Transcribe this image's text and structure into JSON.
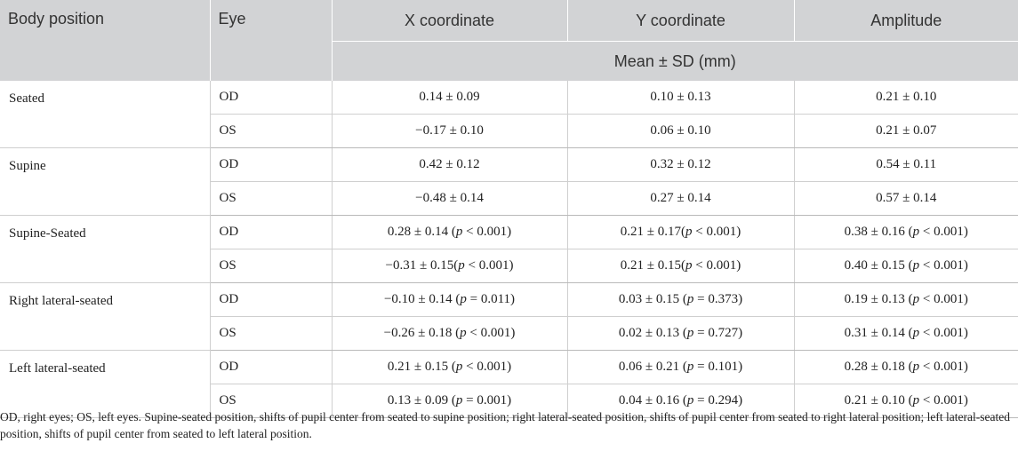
{
  "header": {
    "body_position": "Body position",
    "eye": "Eye",
    "x": "X coordinate",
    "y": "Y coordinate",
    "amplitude": "Amplitude",
    "units": "Mean ± SD (mm)"
  },
  "groups": [
    {
      "position": "Seated",
      "rows": [
        {
          "eye": "OD",
          "x": "0.14 ± 0.09",
          "x_p": "",
          "y": "0.10 ± 0.13",
          "y_p": "",
          "amp": "0.21 ± 0.10",
          "amp_p": ""
        },
        {
          "eye": "OS",
          "x": "−0.17 ± 0.10",
          "x_p": "",
          "y": "0.06 ± 0.10",
          "y_p": "",
          "amp": "0.21 ± 0.07",
          "amp_p": ""
        }
      ]
    },
    {
      "position": "Supine",
      "rows": [
        {
          "eye": "OD",
          "x": "0.42 ± 0.12",
          "x_p": "",
          "y": "0.32 ± 0.12",
          "y_p": "",
          "amp": "0.54 ± 0.11",
          "amp_p": ""
        },
        {
          "eye": "OS",
          "x": "−0.48 ± 0.14",
          "x_p": "",
          "y": "0.27 ± 0.14",
          "y_p": "",
          "amp": "0.57 ± 0.14",
          "amp_p": ""
        }
      ]
    },
    {
      "position": "Supine-Seated",
      "rows": [
        {
          "eye": "OD",
          "x": "0.28 ± 0.14 (",
          "x_p": " < 0.001)",
          "y": "0.21 ± 0.17(",
          "y_p": " < 0.001)",
          "amp": "0.38 ± 0.16 (",
          "amp_p": " < 0.001)"
        },
        {
          "eye": "OS",
          "x": "−0.31 ± 0.15(",
          "x_p": " < 0.001)",
          "y": "0.21 ± 0.15(",
          "y_p": " < 0.001)",
          "amp": "0.40 ± 0.15 (",
          "amp_p": " < 0.001)"
        }
      ]
    },
    {
      "position": "Right lateral-seated",
      "rows": [
        {
          "eye": "OD",
          "x": "−0.10 ± 0.14 (",
          "x_p": " = 0.011)",
          "y": "0.03 ± 0.15 (",
          "y_p": " = 0.373)",
          "amp": "0.19 ± 0.13 (",
          "amp_p": " < 0.001)"
        },
        {
          "eye": "OS",
          "x": "−0.26 ± 0.18 (",
          "x_p": " < 0.001)",
          "y": "0.02 ± 0.13 (",
          "y_p": " = 0.727)",
          "amp": "0.31 ± 0.14 (",
          "amp_p": " < 0.001)"
        }
      ]
    },
    {
      "position": "Left lateral-seated",
      "rows": [
        {
          "eye": "OD",
          "x": "0.21 ± 0.15 (",
          "x_p": " < 0.001)",
          "y": "0.06 ± 0.21 (",
          "y_p": " = 0.101)",
          "amp": "0.28 ± 0.18 (",
          "amp_p": " < 0.001)"
        },
        {
          "eye": "OS",
          "x": "0.13 ± 0.09 (",
          "x_p": " = 0.001)",
          "y": "0.04 ± 0.16 (",
          "y_p": " = 0.294)",
          "amp": "0.21 ± 0.10 (",
          "amp_p": " < 0.001)"
        }
      ]
    }
  ],
  "p_symbol": "p",
  "footnote": "OD, right eyes; OS, left eyes. Supine-seated position, shifts of pupil center from seated to supine position; right lateral-seated position, shifts of pupil center from seated to right lateral position; left lateral-seated position, shifts of pupil center from seated to left lateral position."
}
